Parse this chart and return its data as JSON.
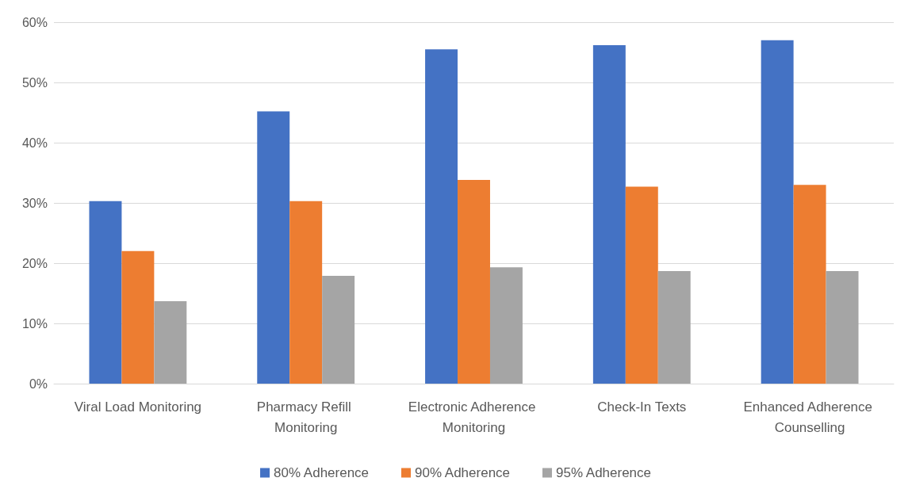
{
  "chart_data": {
    "type": "bar",
    "categories": [
      "Viral Load Monitoring",
      "Pharmacy Refill Monitoring",
      "Electronic Adherence Monitoring",
      "Check-In Texts",
      "Enhanced Adherence Counselling"
    ],
    "series": [
      {
        "name": "80% Adherence",
        "color": "#4472c4",
        "values": [
          30.3,
          45.2,
          55.5,
          56.2,
          57.0
        ]
      },
      {
        "name": "90% Adherence",
        "color": "#ed7d31",
        "values": [
          22.0,
          30.3,
          33.8,
          32.7,
          33.0
        ]
      },
      {
        "name": "95% Adherence",
        "color": "#a5a5a5",
        "values": [
          13.7,
          17.9,
          19.3,
          18.7,
          18.7
        ]
      }
    ],
    "ylim": [
      0,
      60
    ],
    "yticks": [
      {
        "value": 0,
        "label": "0%"
      },
      {
        "value": 10,
        "label": "10%"
      },
      {
        "value": 20,
        "label": "20%"
      },
      {
        "value": 30,
        "label": "30%"
      },
      {
        "value": 40,
        "label": "40%"
      },
      {
        "value": 50,
        "label": "50%"
      },
      {
        "value": 60,
        "label": "60%"
      }
    ],
    "grid": "y",
    "legend": "bottom"
  }
}
